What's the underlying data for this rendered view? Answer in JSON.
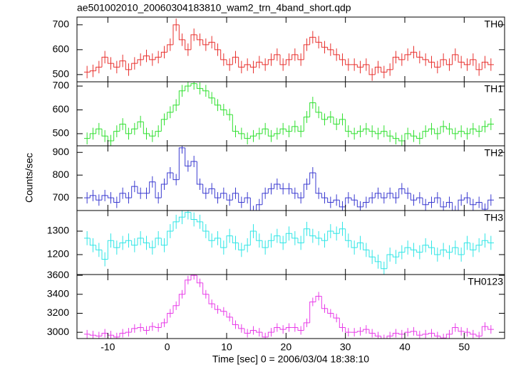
{
  "chart_data": {
    "type": "step",
    "title": "ae501002010_20060304183810_wam2_trn_4band_short.qdp",
    "x_label": "Time [sec] 0 = 2006/03/04 18:38:10",
    "y_label": "Counts/sec",
    "xlim": [
      -15.2,
      56.8
    ],
    "xticks": [
      -10,
      0,
      10,
      20,
      30,
      40,
      50
    ],
    "x": [
      -13.5,
      -12.5,
      -11.5,
      -10.5,
      -9.5,
      -8.5,
      -7.5,
      -6.5,
      -5.5,
      -4.5,
      -3.5,
      -2.5,
      -1.5,
      -0.5,
      0.5,
      1.5,
      2.5,
      3.5,
      4.5,
      5.5,
      6.5,
      7.5,
      8.5,
      9.5,
      10.5,
      11.5,
      12.5,
      13.5,
      14.5,
      15.5,
      16.5,
      17.5,
      18.5,
      19.5,
      20.5,
      21.5,
      22.5,
      23.5,
      24.5,
      25.5,
      26.5,
      27.5,
      28.5,
      29.5,
      30.5,
      31.5,
      32.5,
      33.5,
      34.5,
      35.5,
      36.5,
      37.5,
      38.5,
      39.5,
      40.5,
      41.5,
      42.5,
      43.5,
      44.5,
      45.5,
      46.5,
      47.5,
      48.5,
      49.5,
      50.5,
      51.5,
      52.5,
      53.5,
      54.5
    ],
    "series": [
      {
        "name": "TH0",
        "color": "#e8312e",
        "error": 25,
        "ylim": [
          471,
          731
        ],
        "yticks": [
          500,
          600,
          700
        ],
        "values": [
          510,
          515,
          530,
          570,
          545,
          530,
          555,
          520,
          545,
          560,
          575,
          560,
          570,
          590,
          620,
          700,
          640,
          600,
          660,
          640,
          620,
          630,
          600,
          560,
          540,
          570,
          530,
          540,
          530,
          550,
          540,
          560,
          580,
          540,
          560,
          580,
          560,
          620,
          650,
          630,
          610,
          600,
          580,
          560,
          540,
          540,
          530,
          540,
          500,
          530,
          510,
          520,
          570,
          560,
          580,
          590,
          570,
          560,
          550,
          530,
          560,
          540,
          580,
          550,
          540,
          560,
          520,
          550,
          540
        ]
      },
      {
        "name": "TH1",
        "color": "#2fe02f",
        "error": 25,
        "ylim": [
          449,
          718
        ],
        "yticks": [
          500,
          600,
          700
        ],
        "values": [
          480,
          500,
          520,
          490,
          470,
          510,
          540,
          500,
          520,
          550,
          500,
          490,
          510,
          560,
          590,
          620,
          680,
          700,
          710,
          690,
          680,
          650,
          620,
          600,
          580,
          510,
          500,
          480,
          490,
          500,
          520,
          490,
          500,
          520,
          510,
          530,
          510,
          570,
          630,
          590,
          560,
          570,
          540,
          560,
          510,
          500,
          510,
          520,
          510,
          500,
          510,
          490,
          480,
          470,
          500,
          490,
          480,
          510,
          520,
          500,
          530,
          520,
          500,
          510,
          500,
          520,
          510,
          530,
          540
        ]
      },
      {
        "name": "TH2",
        "color": "#3a3ad0",
        "error": 25,
        "ylim": [
          644,
          929
        ],
        "yticks": [
          700,
          800,
          900
        ],
        "values": [
          700,
          710,
          690,
          710,
          700,
          680,
          720,
          700,
          750,
          720,
          720,
          770,
          700,
          760,
          810,
          780,
          920,
          840,
          860,
          760,
          720,
          740,
          700,
          720,
          690,
          720,
          680,
          700,
          640,
          670,
          720,
          740,
          760,
          740,
          740,
          720,
          700,
          760,
          810,
          720,
          700,
          680,
          690,
          660,
          700,
          690,
          660,
          680,
          700,
          720,
          700,
          720,
          700,
          740,
          720,
          690,
          700,
          670,
          680,
          700,
          660,
          680,
          640,
          690,
          700,
          670,
          680,
          650,
          690
        ]
      },
      {
        "name": "TH3",
        "color": "#2fe6e6",
        "error": 30,
        "ylim": [
          1115,
          1388
        ],
        "yticks": [
          1200,
          1300
        ],
        "values": [
          1270,
          1240,
          1220,
          1180,
          1260,
          1230,
          1250,
          1260,
          1240,
          1270,
          1250,
          1230,
          1270,
          1240,
          1300,
          1340,
          1360,
          1380,
          1350,
          1340,
          1300,
          1260,
          1270,
          1230,
          1280,
          1250,
          1220,
          1240,
          1300,
          1260,
          1230,
          1260,
          1280,
          1250,
          1290,
          1270,
          1250,
          1310,
          1280,
          1270,
          1260,
          1300,
          1290,
          1310,
          1260,
          1230,
          1250,
          1220,
          1190,
          1170,
          1140,
          1200,
          1190,
          1210,
          1230,
          1220,
          1210,
          1240,
          1230,
          1200,
          1220,
          1210,
          1230,
          1200,
          1250,
          1220,
          1240,
          1260,
          1250
        ]
      },
      {
        "name": "TH0123",
        "color": "#e83be8",
        "error": 45,
        "ylim": [
          2934,
          3608
        ],
        "yticks": [
          3000,
          3200,
          3400,
          3600
        ],
        "values": [
          2980,
          2970,
          2960,
          2990,
          2970,
          2950,
          2990,
          3000,
          3040,
          3050,
          3020,
          3060,
          3050,
          3100,
          3200,
          3280,
          3400,
          3550,
          3600,
          3520,
          3400,
          3300,
          3240,
          3220,
          3160,
          3080,
          3040,
          2990,
          3020,
          3000,
          2950,
          3000,
          3050,
          3030,
          3050,
          3050,
          3020,
          3100,
          3320,
          3380,
          3250,
          3200,
          3150,
          3050,
          3000,
          3000,
          3010,
          3030,
          2990,
          2960,
          2930,
          2960,
          2990,
          2980,
          3000,
          3010,
          2970,
          2980,
          2990,
          2960,
          2940,
          2980,
          3050,
          3010,
          3000,
          2980,
          2960,
          3060,
          3030
        ]
      }
    ]
  }
}
